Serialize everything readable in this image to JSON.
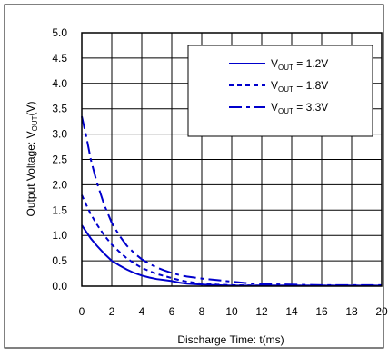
{
  "chart_data": {
    "type": "line",
    "title": "",
    "xlabel": "Discharge Time: t(ms)",
    "ylabel_main": "Output Voltage: V",
    "ylabel_sub": "OUT",
    "ylabel_unit": "(V)",
    "xlim": [
      0,
      20
    ],
    "ylim": [
      0,
      5
    ],
    "xticks": [
      0,
      2,
      4,
      6,
      8,
      10,
      12,
      14,
      16,
      18,
      20
    ],
    "yticks": [
      0.0,
      0.5,
      1.0,
      1.5,
      2.0,
      2.5,
      3.0,
      3.5,
      4.0,
      4.5,
      5.0
    ],
    "grid": true,
    "legend_position": "top-right",
    "series": [
      {
        "name": "VOUT = 1.2V",
        "legend_main": "V",
        "legend_sub": "OUT",
        "legend_rest": " = 1.2V",
        "line_style": "solid",
        "color": "#0000CC",
        "x": [
          0,
          0.3,
          0.6,
          1,
          1.5,
          2,
          2.5,
          3,
          3.5,
          4,
          4.5,
          5,
          5.5,
          6,
          6.5,
          7,
          8,
          9,
          10,
          12,
          14,
          16,
          18,
          20
        ],
        "y": [
          1.2,
          1.07,
          0.94,
          0.8,
          0.64,
          0.5,
          0.41,
          0.33,
          0.26,
          0.21,
          0.17,
          0.14,
          0.12,
          0.1,
          0.07,
          0.05,
          0.03,
          0.02,
          0.01,
          0.01,
          0.01,
          0.01,
          0.01,
          0.01
        ]
      },
      {
        "name": "VOUT = 1.8V",
        "legend_main": "V",
        "legend_sub": "OUT",
        "legend_rest": " = 1.8V",
        "line_style": "dotted",
        "color": "#0000CC",
        "x": [
          0,
          0.3,
          0.6,
          1,
          1.5,
          2,
          2.5,
          3,
          3.5,
          4,
          4.5,
          5,
          5.5,
          6,
          6.5,
          7,
          8,
          9,
          10,
          12,
          14,
          16,
          18,
          20
        ],
        "y": [
          1.8,
          1.6,
          1.42,
          1.22,
          1.0,
          0.82,
          0.68,
          0.55,
          0.45,
          0.36,
          0.3,
          0.24,
          0.2,
          0.16,
          0.12,
          0.09,
          0.05,
          0.03,
          0.02,
          0.01,
          0.01,
          0.01,
          0.01,
          0.01
        ]
      },
      {
        "name": "VOUT = 3.3V",
        "legend_main": "V",
        "legend_sub": "OUT",
        "legend_rest": " = 3.3V",
        "line_style": "dash-dot",
        "color": "#0000CC",
        "x": [
          0,
          0.3,
          0.6,
          1,
          1.5,
          2,
          2.5,
          3,
          3.5,
          4,
          4.5,
          5,
          5.5,
          6,
          6.5,
          7,
          8,
          9,
          10,
          11,
          12,
          14,
          16,
          18,
          20
        ],
        "y": [
          3.35,
          2.95,
          2.5,
          2.05,
          1.6,
          1.25,
          1.0,
          0.8,
          0.65,
          0.53,
          0.44,
          0.37,
          0.31,
          0.26,
          0.22,
          0.19,
          0.15,
          0.12,
          0.09,
          0.06,
          0.04,
          0.03,
          0.02,
          0.02,
          0.02
        ]
      }
    ]
  }
}
